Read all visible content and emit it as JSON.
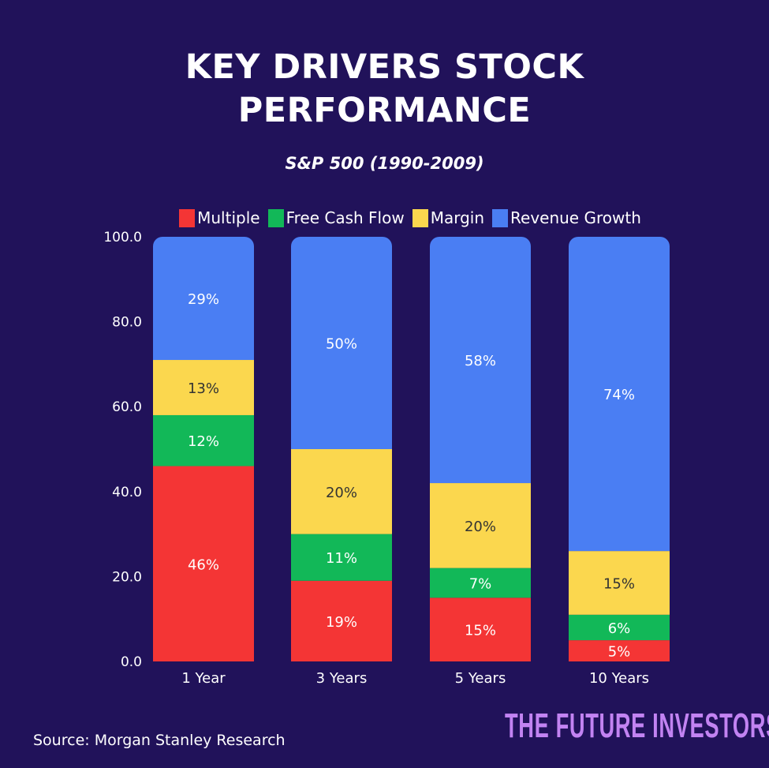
{
  "chart_data": {
    "type": "bar",
    "stacked": true,
    "title": "KEY DRIVERS STOCK PERFORMANCE",
    "title_lines": [
      "KEY DRIVERS STOCK",
      "PERFORMANCE"
    ],
    "subtitle": "S&P 500 (1990-2009)",
    "categories": [
      "1 Year",
      "3 Years",
      "5 Years",
      "10 Years"
    ],
    "series": [
      {
        "name": "Multiple",
        "color": "#f43535",
        "label_color": "#ffffff",
        "values": [
          46,
          19,
          15,
          5
        ]
      },
      {
        "name": "Free Cash Flow",
        "color": "#12b858",
        "label_color": "#ffffff",
        "values": [
          12,
          11,
          7,
          6
        ]
      },
      {
        "name": "Margin",
        "color": "#fbd74e",
        "label_color": "#333333",
        "values": [
          13,
          20,
          20,
          15
        ]
      },
      {
        "name": "Revenue Growth",
        "color": "#4a7ef3",
        "label_color": "#ffffff",
        "values": [
          29,
          50,
          58,
          74
        ]
      }
    ],
    "ylim": [
      0,
      100
    ],
    "yticks": [
      "0.0",
      "20.0",
      "40.0",
      "60.0",
      "80.0",
      "100.0"
    ],
    "ytick_values": [
      0,
      20,
      40,
      60,
      80,
      100
    ],
    "label_suffix": "%",
    "legend_position": "top",
    "grid": false,
    "background": "#21125a"
  },
  "footer": {
    "source": "Source: Morgan Stanley Research",
    "brand": "THE FUTURE INVESTORS"
  }
}
